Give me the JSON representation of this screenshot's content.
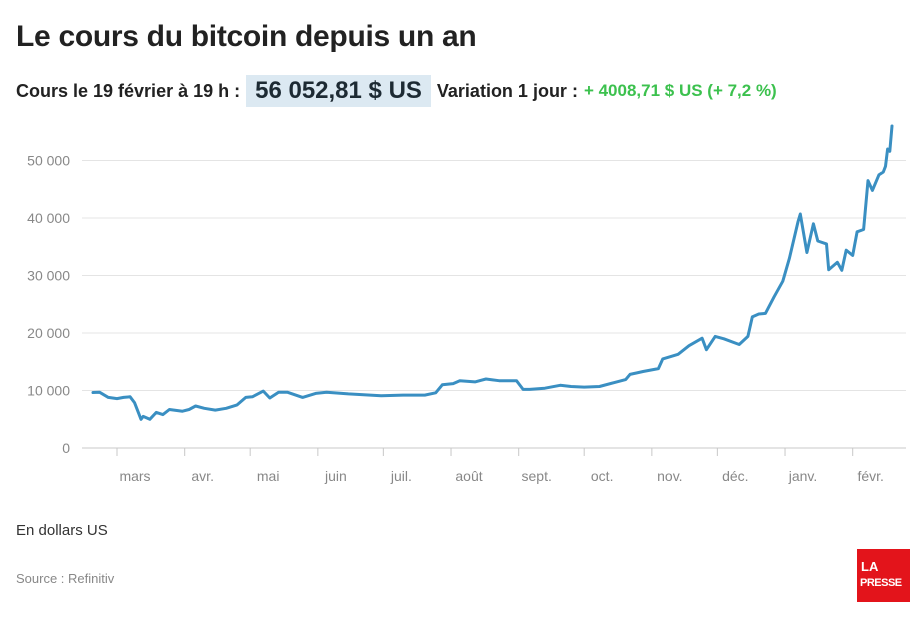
{
  "title": "Le cours du bitcoin depuis un an",
  "price_line": {
    "label": "Cours le 19 février à 19 h :",
    "price": "56 052,81 $ US",
    "variation_label": "Variation 1 jour :",
    "variation_value": "+ 4008,71 $ US (+ 7,2 %)"
  },
  "footer": {
    "unit_note": "En dollars US",
    "source": "Source : Refinitiv",
    "logo_text": "LA PRESSE"
  },
  "colors": {
    "line": "#3a8fc2",
    "positive": "#3cc14e",
    "price_highlight": "#dce9f2",
    "logo_bg": "#e3141b"
  },
  "chart_data": {
    "type": "line",
    "title": "Le cours du bitcoin depuis un an",
    "ylabel": "En dollars US",
    "ylim": [
      0,
      56000
    ],
    "yticks": [
      0,
      10000,
      20000,
      30000,
      40000,
      50000
    ],
    "ytick_labels": [
      "0",
      "10 000",
      "20 000",
      "30 000",
      "40 000",
      "50 000"
    ],
    "xticks": [
      "2020-03-01",
      "2020-04-01",
      "2020-05-01",
      "2020-06-01",
      "2020-07-01",
      "2020-08-01",
      "2020-09-01",
      "2020-10-01",
      "2020-11-01",
      "2020-12-01",
      "2021-01-01",
      "2021-02-01"
    ],
    "xtick_labels": [
      "mars",
      "avr.",
      "mai",
      "juin",
      "juil.",
      "août",
      "sept.",
      "oct.",
      "nov.",
      "déc.",
      "janv.",
      "févr."
    ],
    "grid": true,
    "series": [
      {
        "points": [
          [
            "2020-02-19",
            9650
          ],
          [
            "2020-02-22",
            9700
          ],
          [
            "2020-02-26",
            8800
          ],
          [
            "2020-03-01",
            8600
          ],
          [
            "2020-03-04",
            8800
          ],
          [
            "2020-03-07",
            8900
          ],
          [
            "2020-03-09",
            7900
          ],
          [
            "2020-03-12",
            5000
          ],
          [
            "2020-03-13",
            5500
          ],
          [
            "2020-03-16",
            5000
          ],
          [
            "2020-03-19",
            6200
          ],
          [
            "2020-03-22",
            5800
          ],
          [
            "2020-03-25",
            6700
          ],
          [
            "2020-03-31",
            6400
          ],
          [
            "2020-04-03",
            6700
          ],
          [
            "2020-04-06",
            7300
          ],
          [
            "2020-04-10",
            6900
          ],
          [
            "2020-04-15",
            6600
          ],
          [
            "2020-04-20",
            6900
          ],
          [
            "2020-04-25",
            7500
          ],
          [
            "2020-04-29",
            8800
          ],
          [
            "2020-05-02",
            8900
          ],
          [
            "2020-05-07",
            9900
          ],
          [
            "2020-05-10",
            8700
          ],
          [
            "2020-05-14",
            9700
          ],
          [
            "2020-05-18",
            9700
          ],
          [
            "2020-05-25",
            8800
          ],
          [
            "2020-05-31",
            9500
          ],
          [
            "2020-06-05",
            9700
          ],
          [
            "2020-06-15",
            9400
          ],
          [
            "2020-06-20",
            9300
          ],
          [
            "2020-06-30",
            9100
          ],
          [
            "2020-07-10",
            9200
          ],
          [
            "2020-07-20",
            9200
          ],
          [
            "2020-07-25",
            9600
          ],
          [
            "2020-07-28",
            11000
          ],
          [
            "2020-08-02",
            11200
          ],
          [
            "2020-08-05",
            11700
          ],
          [
            "2020-08-12",
            11500
          ],
          [
            "2020-08-17",
            12000
          ],
          [
            "2020-08-23",
            11700
          ],
          [
            "2020-08-31",
            11700
          ],
          [
            "2020-09-03",
            10200
          ],
          [
            "2020-09-06",
            10200
          ],
          [
            "2020-09-13",
            10400
          ],
          [
            "2020-09-20",
            10900
          ],
          [
            "2020-09-25",
            10700
          ],
          [
            "2020-10-01",
            10600
          ],
          [
            "2020-10-08",
            10700
          ],
          [
            "2020-10-15",
            11400
          ],
          [
            "2020-10-20",
            11900
          ],
          [
            "2020-10-22",
            12800
          ],
          [
            "2020-10-28",
            13300
          ],
          [
            "2020-11-04",
            13800
          ],
          [
            "2020-11-06",
            15500
          ],
          [
            "2020-11-13",
            16300
          ],
          [
            "2020-11-18",
            17800
          ],
          [
            "2020-11-24",
            19100
          ],
          [
            "2020-11-26",
            17100
          ],
          [
            "2020-11-30",
            19400
          ],
          [
            "2020-12-04",
            19000
          ],
          [
            "2020-12-11",
            18000
          ],
          [
            "2020-12-15",
            19400
          ],
          [
            "2020-12-17",
            22800
          ],
          [
            "2020-12-20",
            23300
          ],
          [
            "2020-12-23",
            23400
          ],
          [
            "2020-12-27",
            26300
          ],
          [
            "2020-12-31",
            29000
          ],
          [
            "2021-01-03",
            33000
          ],
          [
            "2021-01-07",
            39400
          ],
          [
            "2021-01-08",
            40700
          ],
          [
            "2021-01-11",
            34000
          ],
          [
            "2021-01-14",
            39000
          ],
          [
            "2021-01-16",
            36000
          ],
          [
            "2021-01-20",
            35500
          ],
          [
            "2021-01-21",
            31000
          ],
          [
            "2021-01-25",
            32300
          ],
          [
            "2021-01-27",
            30900
          ],
          [
            "2021-01-29",
            34400
          ],
          [
            "2021-02-01",
            33500
          ],
          [
            "2021-02-03",
            37600
          ],
          [
            "2021-02-06",
            38000
          ],
          [
            "2021-02-08",
            46500
          ],
          [
            "2021-02-10",
            44800
          ],
          [
            "2021-02-13",
            47500
          ],
          [
            "2021-02-15",
            48000
          ],
          [
            "2021-02-16",
            49000
          ],
          [
            "2021-02-17",
            52000
          ],
          [
            "2021-02-18",
            51600
          ],
          [
            "2021-02-19",
            56000
          ]
        ]
      }
    ]
  }
}
